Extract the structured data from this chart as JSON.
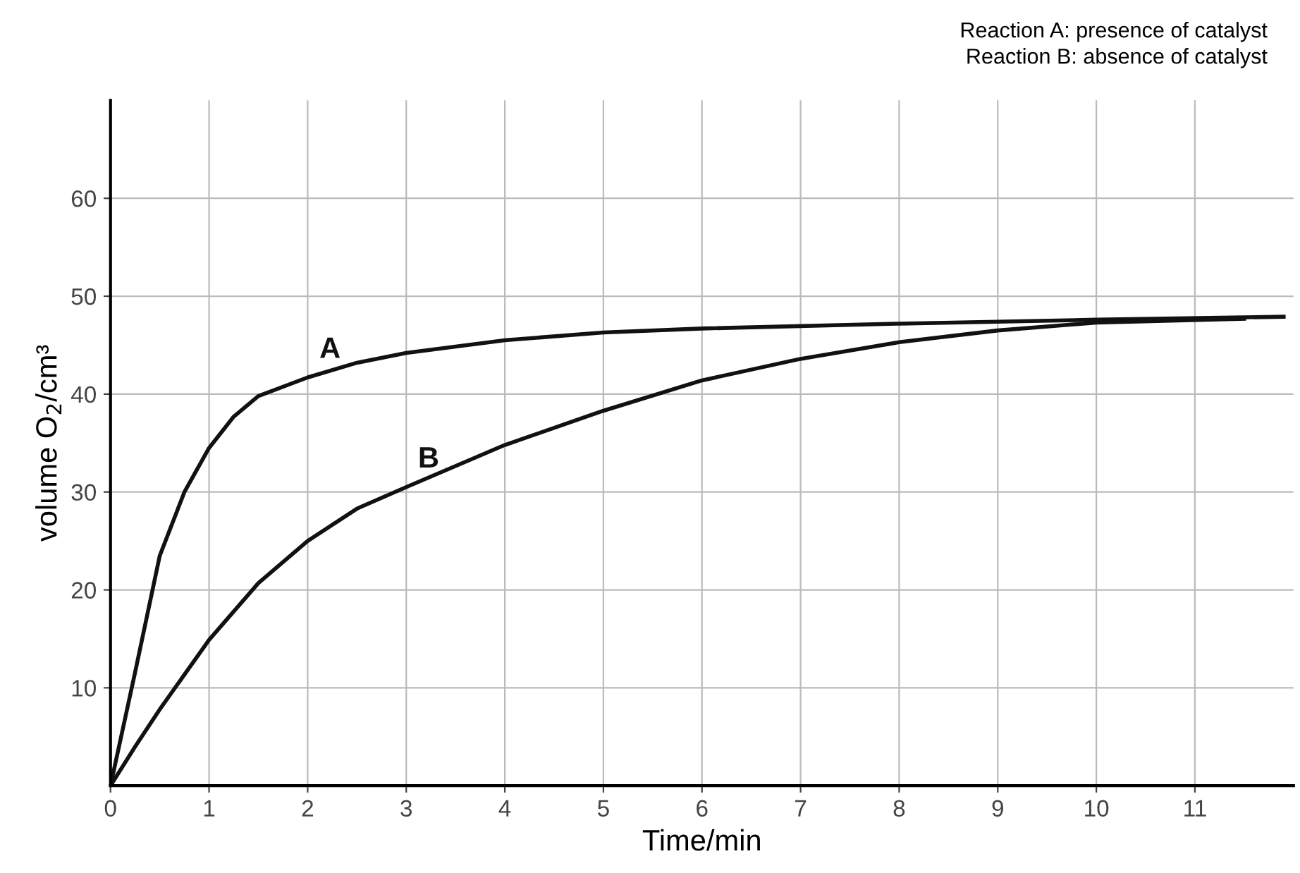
{
  "chart_data": {
    "type": "line",
    "xlabel": "Time/min",
    "ylabel": "volume O$_{2}$/cm³",
    "annotations": [
      "Reaction A: presence of catalyst",
      "Reaction B: absence of catalyst"
    ],
    "series": [
      {
        "name": "A",
        "color": "#111111",
        "x": [
          0,
          0.25,
          0.5,
          0.75,
          1,
          1.25,
          1.5,
          2,
          2.5,
          3,
          4,
          5,
          6,
          8,
          10,
          11.9
        ],
        "values": [
          0,
          11.6,
          23.5,
          30,
          34.5,
          37.7,
          39.8,
          41.7,
          43.2,
          44.2,
          45.5,
          46.3,
          46.7,
          47.2,
          47.6,
          47.9
        ]
      },
      {
        "name": "B",
        "color": "#111111",
        "x": [
          0,
          0.25,
          0.5,
          1,
          1.5,
          2,
          2.5,
          3,
          4,
          4.6,
          5,
          6,
          7,
          8,
          9,
          10,
          11.5
        ],
        "values": [
          0,
          4,
          7.8,
          14.9,
          20.7,
          25,
          28.3,
          30.5,
          34.8,
          36.9,
          38.3,
          41.4,
          43.6,
          45.3,
          46.5,
          47.3,
          47.7
        ]
      }
    ],
    "xlim": [
      0,
      12
    ],
    "xticks": [
      0,
      1,
      2,
      3,
      4,
      5,
      6,
      7,
      8,
      9,
      10,
      11
    ],
    "ylim": [
      0,
      70
    ],
    "yticks": [
      10,
      20,
      30,
      40,
      50,
      60
    ],
    "grid": true,
    "legend": false,
    "marker": "none",
    "line_style": "solid"
  }
}
